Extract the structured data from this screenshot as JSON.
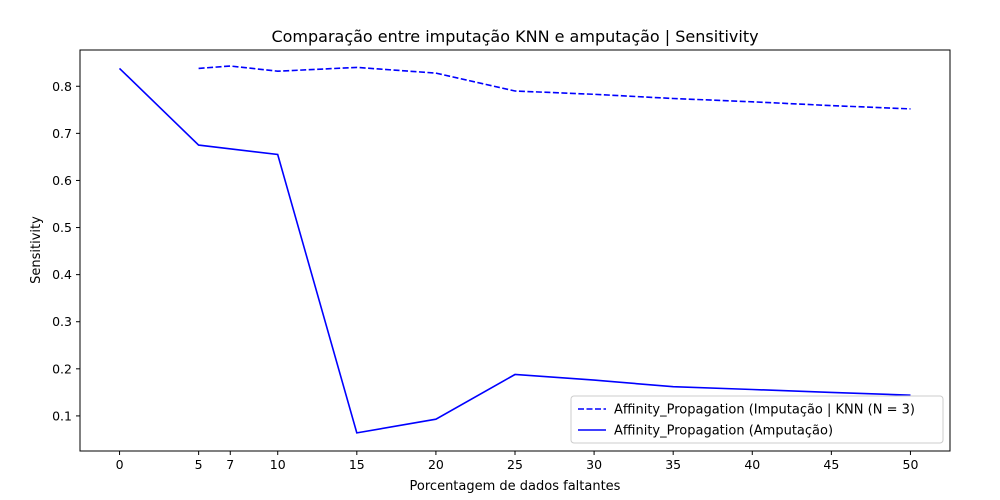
{
  "chart_data": {
    "type": "line",
    "title": "Comparação entre imputação KNN e amputação | Sensitivity",
    "xlabel": "Porcentagem de dados faltantes",
    "ylabel": "Sensitivity",
    "xlim": [
      -2.5,
      52.5
    ],
    "ylim": [
      0.0255,
      0.877
    ],
    "xticks": [
      0,
      5,
      7,
      10,
      15,
      20,
      25,
      30,
      35,
      40,
      45,
      50
    ],
    "yticks": [
      0.1,
      0.2,
      0.3,
      0.4,
      0.5,
      0.6,
      0.7,
      0.8
    ],
    "grid": false,
    "legend_position": "lower right",
    "series": [
      {
        "name": "Affinity_Propagation (Imputação | KNN (N = 3)",
        "color": "#0000ff",
        "dash": "dashed",
        "x": [
          5,
          7,
          10,
          15,
          20,
          25,
          30,
          35,
          40,
          45,
          50
        ],
        "y": [
          0.838,
          0.843,
          0.832,
          0.84,
          0.828,
          0.79,
          0.783,
          0.774,
          0.767,
          0.759,
          0.752
        ]
      },
      {
        "name": "Affinity_Propagation (Amputação)",
        "color": "#0000ff",
        "dash": "solid",
        "x": [
          0,
          5,
          10,
          15,
          20,
          25,
          30,
          35,
          40,
          45,
          50
        ],
        "y": [
          0.838,
          0.675,
          0.655,
          0.064,
          0.093,
          0.188,
          0.176,
          0.162,
          0.156,
          0.15,
          0.144
        ]
      }
    ]
  }
}
